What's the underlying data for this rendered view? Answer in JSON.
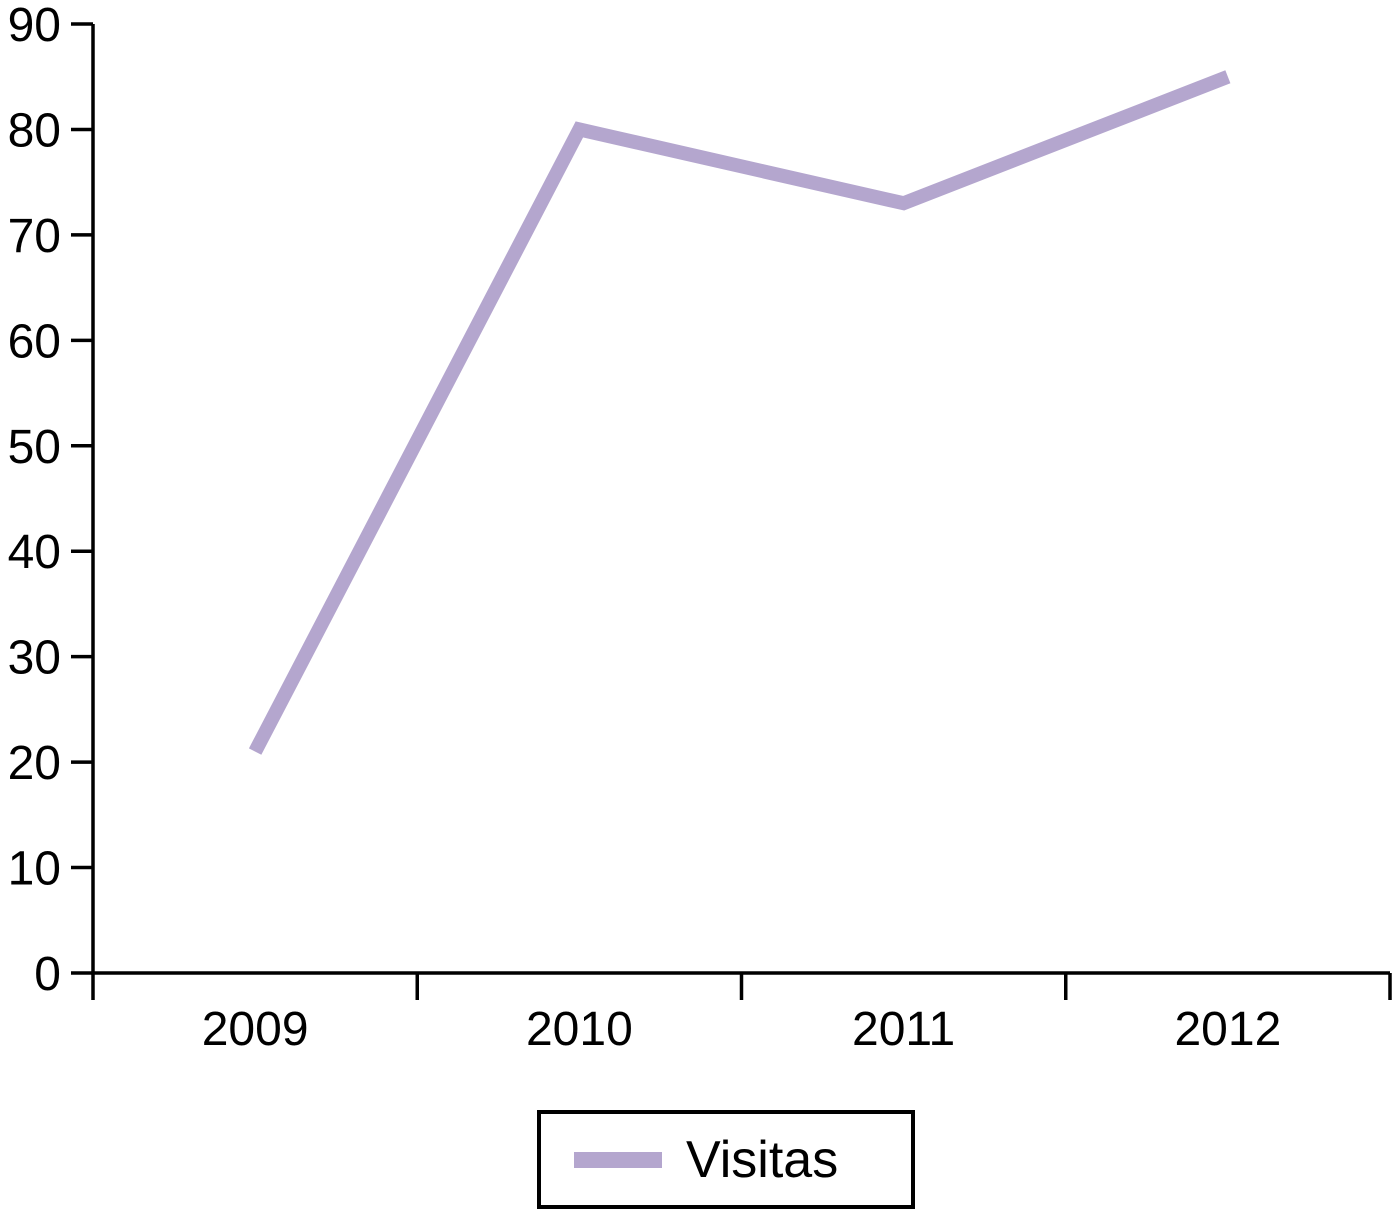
{
  "chart_data": {
    "type": "line",
    "categories": [
      "2009",
      "2010",
      "2011",
      "2012"
    ],
    "series": [
      {
        "name": "Visitas",
        "values": [
          21,
          80,
          73,
          85
        ],
        "color": "#b4a6ce"
      }
    ],
    "title": "",
    "xlabel": "",
    "ylabel": "",
    "ylim": [
      0,
      90
    ],
    "ytick_step": 10,
    "ytick_labels": [
      "0",
      "10",
      "20",
      "30",
      "40",
      "50",
      "60",
      "70",
      "80",
      "90"
    ],
    "grid": false,
    "legend_position": "bottom",
    "axis_color": "#000000",
    "tick_label_color": "#000000"
  },
  "legend": {
    "label": "Visitas"
  }
}
